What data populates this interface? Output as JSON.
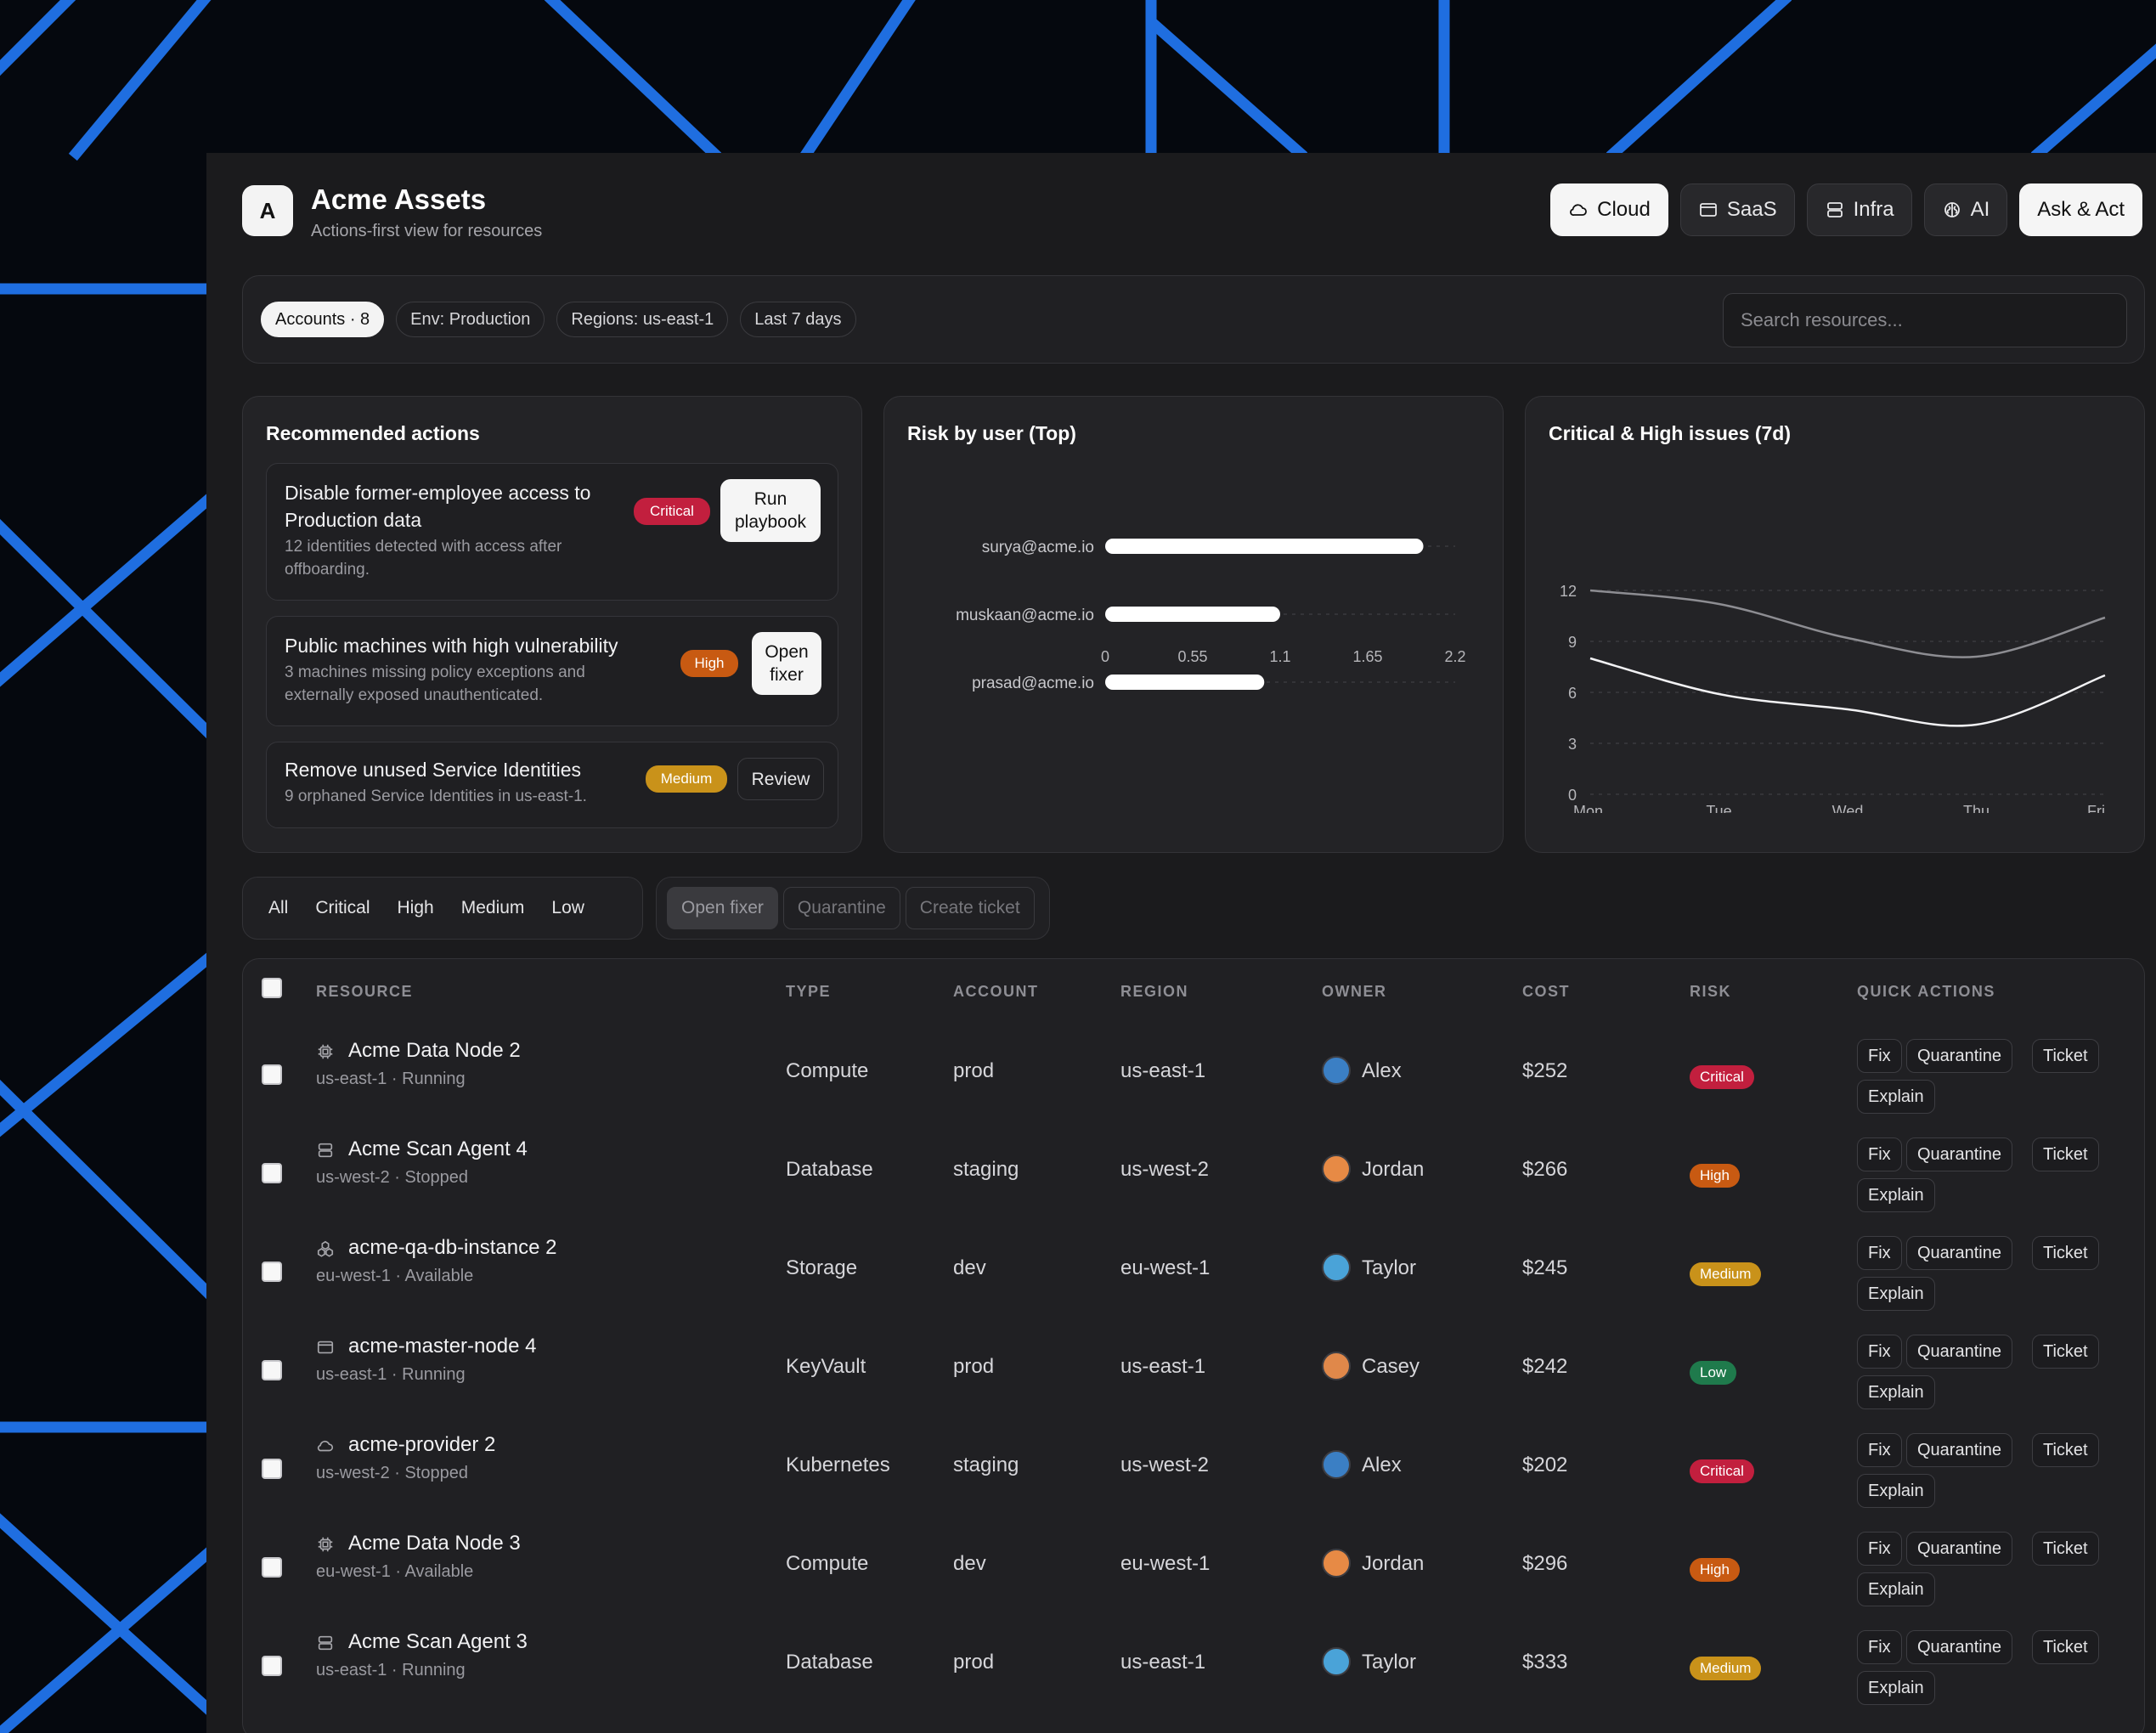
{
  "app": {
    "logo": "A",
    "title": "Acme Assets",
    "subtitle": "Actions-first view for resources"
  },
  "nav": [
    {
      "label": "Cloud",
      "icon": "cloud-icon",
      "active": true
    },
    {
      "label": "SaaS",
      "icon": "browser-window-icon",
      "active": false
    },
    {
      "label": "Infra",
      "icon": "server-icon",
      "active": false
    },
    {
      "label": "AI",
      "icon": "brain-icon",
      "active": false
    }
  ],
  "ask_act": "Ask & Act",
  "filters": {
    "chips": [
      "Accounts · 8",
      "Env: Production",
      "Regions: us-east-1",
      "Last 7 days"
    ],
    "search_placeholder": "Search resources..."
  },
  "recommended": {
    "title": "Recommended actions",
    "items": [
      {
        "title_line1": "Disable former-employee access to",
        "title_line2": "Production data",
        "desc_line1": "12 identities detected with access after",
        "desc_line2": "offboarding.",
        "severity": "Critical",
        "action_line1": "Run",
        "action_line2": "playbook"
      },
      {
        "title_line1": "Public machines with high vulnerability",
        "desc_line1": "3 machines missing policy exceptions and",
        "desc_line2": "externally exposed unauthenticated.",
        "severity": "High",
        "action_line1": "Open",
        "action_line2": "fixer"
      },
      {
        "title_line1": "Remove unused Service Identities",
        "desc_line1": "9 orphaned Service Identities in us-east-1.",
        "severity": "Medium",
        "action_line1": "Review"
      }
    ]
  },
  "chart_data": [
    {
      "type": "bar",
      "orientation": "horizontal",
      "title": "Risk by user (Top)",
      "categories": [
        "surya@acme.io",
        "muskaan@acme.io",
        "prasad@acme.io"
      ],
      "values": [
        2.0,
        1.1,
        1.0
      ],
      "xlim": [
        0,
        2.2
      ],
      "xticks": [
        "0",
        "0.55",
        "1.1",
        "1.65",
        "2.2"
      ],
      "grid": "dashed horizontal guides"
    },
    {
      "type": "line",
      "title": "Critical & High issues (7d)",
      "categories": [
        "Mon",
        "Tue",
        "Wed",
        "Thu",
        "Fri"
      ],
      "series": [
        {
          "values": [
            12.0,
            11.2,
            9.2,
            8.1,
            10.4
          ]
        },
        {
          "values": [
            8.0,
            5.9,
            5.0,
            4.1,
            7.0
          ]
        }
      ],
      "ylim": [
        0,
        12
      ],
      "yticks": [
        "0",
        "3",
        "6",
        "9",
        "12"
      ],
      "grid": "dashed horizontal"
    }
  ],
  "priority_filter": [
    "All",
    "Critical",
    "High",
    "Medium",
    "Low"
  ],
  "bulk_actions": [
    "Open fixer",
    "Quarantine",
    "Create ticket"
  ],
  "table": {
    "columns": [
      "RESOURCE",
      "TYPE",
      "ACCOUNT",
      "REGION",
      "OWNER",
      "COST",
      "RISK",
      "QUICK ACTIONS"
    ],
    "quick_actions": [
      "Fix",
      "Quarantine",
      "Ticket",
      "Explain"
    ],
    "rows": [
      {
        "name": "Acme Data Node 2",
        "sub": "us-east-1 · Running",
        "icon": "chip-icon",
        "type": "Compute",
        "account": "prod",
        "region": "us-east-1",
        "owner": "Alex",
        "cost": "$252",
        "risk": "Critical"
      },
      {
        "name": "Acme Scan Agent 4",
        "sub": "us-west-2 · Stopped",
        "icon": "server-icon",
        "type": "Database",
        "account": "staging",
        "region": "us-west-2",
        "owner": "Jordan",
        "cost": "$266",
        "risk": "High"
      },
      {
        "name": "acme-qa-db-instance 2",
        "sub": "eu-west-1 · Available",
        "icon": "boxes-icon",
        "type": "Storage",
        "account": "dev",
        "region": "eu-west-1",
        "owner": "Taylor",
        "cost": "$245",
        "risk": "Medium"
      },
      {
        "name": "acme-master-node 4",
        "sub": "us-east-1 · Running",
        "icon": "browser-window-icon",
        "type": "KeyVault",
        "account": "prod",
        "region": "us-east-1",
        "owner": "Casey",
        "cost": "$242",
        "risk": "Low"
      },
      {
        "name": "acme-provider 2",
        "sub": "us-west-2 · Stopped",
        "icon": "cloud-icon",
        "type": "Kubernetes",
        "account": "staging",
        "region": "us-west-2",
        "owner": "Alex",
        "cost": "$202",
        "risk": "Critical"
      },
      {
        "name": "Acme Data Node 3",
        "sub": "eu-west-1 · Available",
        "icon": "chip-icon",
        "type": "Compute",
        "account": "dev",
        "region": "eu-west-1",
        "owner": "Jordan",
        "cost": "$296",
        "risk": "High"
      },
      {
        "name": "Acme Scan Agent 3",
        "sub": "us-east-1 · Running",
        "icon": "server-icon",
        "type": "Database",
        "account": "prod",
        "region": "us-east-1",
        "owner": "Taylor",
        "cost": "$333",
        "risk": "Medium"
      }
    ]
  },
  "colors": {
    "critical": "#c21f3e",
    "high": "#c85a12",
    "medium": "#c9921a",
    "low": "#1f7a4c",
    "background_lines": "#2f7fe0"
  }
}
